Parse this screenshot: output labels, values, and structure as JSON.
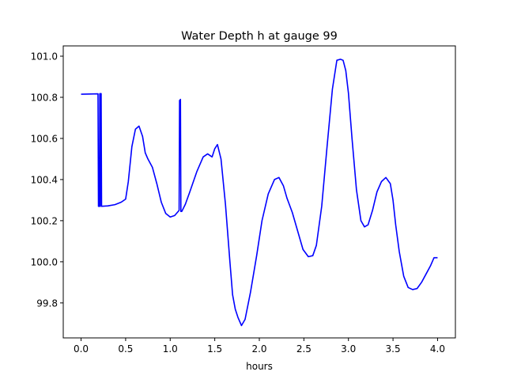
{
  "chart_data": {
    "type": "line",
    "title": "Water Depth h at gauge 99",
    "xlabel": "hours",
    "ylabel": "",
    "xlim": [
      -0.2,
      4.2
    ],
    "ylim": [
      99.63,
      101.05
    ],
    "xticks": [
      0.0,
      0.5,
      1.0,
      1.5,
      2.0,
      2.5,
      3.0,
      3.5,
      4.0
    ],
    "xtick_labels": [
      "0.0",
      "0.5",
      "1.0",
      "1.5",
      "2.0",
      "2.5",
      "3.0",
      "3.5",
      "4.0"
    ],
    "yticks": [
      99.8,
      100.0,
      100.2,
      100.4,
      100.6,
      100.8,
      101.0
    ],
    "ytick_labels": [
      "99.8",
      "100.0",
      "100.2",
      "100.4",
      "100.6",
      "100.8",
      "101.0"
    ],
    "grid": false,
    "series": [
      {
        "color": "#0000ff",
        "x": [
          0.0,
          0.19,
          0.195,
          0.205,
          0.21,
          0.215,
          0.22,
          0.225,
          0.23,
          0.3,
          0.38,
          0.45,
          0.5,
          0.53,
          0.57,
          0.61,
          0.65,
          0.69,
          0.72,
          0.75,
          0.8,
          0.85,
          0.9,
          0.95,
          1.0,
          1.05,
          1.1,
          1.105,
          1.11,
          1.115,
          1.12,
          1.125,
          1.13,
          1.17,
          1.22,
          1.3,
          1.37,
          1.42,
          1.47,
          1.5,
          1.53,
          1.57,
          1.62,
          1.67,
          1.7,
          1.73,
          1.76,
          1.8,
          1.84,
          1.9,
          1.97,
          2.03,
          2.1,
          2.17,
          2.22,
          2.27,
          2.31,
          2.37,
          2.43,
          2.49,
          2.55,
          2.6,
          2.64,
          2.7,
          2.76,
          2.82,
          2.87,
          2.91,
          2.94,
          2.97,
          3.0,
          3.04,
          3.09,
          3.14,
          3.18,
          3.22,
          3.27,
          3.32,
          3.37,
          3.42,
          3.47,
          3.5,
          3.53,
          3.57,
          3.62,
          3.67,
          3.72,
          3.77,
          3.82,
          3.87,
          3.92,
          3.96,
          4.0
        ],
        "y": [
          100.815,
          100.817,
          100.27,
          100.27,
          100.818,
          100.27,
          100.818,
          100.818,
          100.27,
          100.272,
          100.278,
          100.29,
          100.305,
          100.39,
          100.56,
          100.645,
          100.66,
          100.61,
          100.53,
          100.5,
          100.46,
          100.38,
          100.29,
          100.235,
          100.218,
          100.225,
          100.25,
          100.785,
          100.785,
          100.79,
          100.245,
          100.245,
          100.245,
          100.28,
          100.34,
          100.44,
          100.51,
          100.525,
          100.51,
          100.55,
          100.57,
          100.5,
          100.28,
          100.0,
          99.84,
          99.77,
          99.73,
          99.69,
          99.72,
          99.85,
          100.03,
          100.2,
          100.33,
          100.4,
          100.41,
          100.37,
          100.31,
          100.24,
          100.15,
          100.06,
          100.025,
          100.03,
          100.08,
          100.27,
          100.56,
          100.84,
          100.98,
          100.985,
          100.98,
          100.93,
          100.82,
          100.6,
          100.35,
          100.2,
          100.17,
          100.18,
          100.25,
          100.34,
          100.39,
          100.41,
          100.38,
          100.3,
          100.18,
          100.05,
          99.93,
          99.875,
          99.865,
          99.87,
          99.9,
          99.94,
          99.98,
          100.02,
          100.02
        ]
      }
    ]
  }
}
